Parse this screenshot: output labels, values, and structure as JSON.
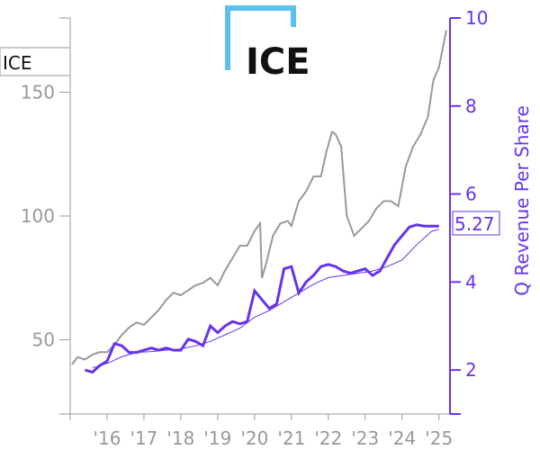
{
  "chart_data": {
    "type": "line",
    "ticker": "ICE",
    "logo_text": "ICE",
    "ylabel_right": "Q Revenue Per Share",
    "last_value_label": "5.27",
    "left_axis": {
      "range": [
        20,
        180
      ],
      "ticks": [
        50,
        100,
        150
      ]
    },
    "right_axis": {
      "range": [
        1,
        10
      ],
      "ticks": [
        2,
        4,
        6,
        8,
        10
      ]
    },
    "x_axis": {
      "range": [
        2015.0,
        2025.3
      ],
      "tick_labels": [
        "'16",
        "'17",
        "'18",
        "'19",
        "'20",
        "'21",
        "'22",
        "'23",
        "'24",
        "'25"
      ]
    },
    "grid": false,
    "colors": {
      "price": "#999999",
      "revenue": "#6633ee",
      "logo_accent": "#5bc0eb"
    },
    "series": [
      {
        "type": "price",
        "axis": "left",
        "x": [
          2015.05,
          2015.2,
          2015.4,
          2015.6,
          2015.8,
          2016.0,
          2016.2,
          2016.4,
          2016.6,
          2016.8,
          2017.0,
          2017.2,
          2017.4,
          2017.6,
          2017.8,
          2018.0,
          2018.2,
          2018.4,
          2018.6,
          2018.8,
          2019.0,
          2019.2,
          2019.4,
          2019.6,
          2019.8,
          2020.0,
          2020.15,
          2020.2,
          2020.3,
          2020.5,
          2020.7,
          2020.9,
          2021.0,
          2021.2,
          2021.4,
          2021.6,
          2021.8,
          2021.95,
          2022.1,
          2022.2,
          2022.35,
          2022.5,
          2022.7,
          2022.9,
          2023.1,
          2023.3,
          2023.5,
          2023.7,
          2023.9,
          2024.1,
          2024.3,
          2024.5,
          2024.7,
          2024.85,
          2025.0,
          2025.2
        ],
        "values": [
          40,
          43,
          42,
          44,
          45,
          45,
          48,
          52,
          55,
          57,
          56,
          59,
          62,
          66,
          69,
          68,
          70,
          72,
          73,
          75,
          72,
          78,
          83,
          88,
          88,
          94,
          97,
          75,
          80,
          92,
          97,
          98,
          96,
          106,
          110,
          116,
          116,
          126,
          134,
          133,
          128,
          100,
          92,
          95,
          98,
          103,
          106,
          106,
          104,
          120,
          128,
          133,
          140,
          155,
          160,
          175
        ]
      },
      {
        "type": "revenue",
        "axis": "right",
        "x": [
          2015.4,
          2015.6,
          2015.8,
          2016.0,
          2016.2,
          2016.4,
          2016.6,
          2016.8,
          2017.0,
          2017.2,
          2017.4,
          2017.6,
          2017.8,
          2018.0,
          2018.2,
          2018.4,
          2018.6,
          2018.8,
          2019.0,
          2019.2,
          2019.4,
          2019.6,
          2019.8,
          2020.0,
          2020.2,
          2020.4,
          2020.6,
          2020.8,
          2021.0,
          2021.2,
          2021.4,
          2021.6,
          2021.8,
          2022.0,
          2022.2,
          2022.4,
          2022.6,
          2022.8,
          2023.0,
          2023.2,
          2023.4,
          2023.6,
          2023.8,
          2024.0,
          2024.2,
          2024.4,
          2024.6,
          2024.8,
          2025.0
        ],
        "values": [
          2.0,
          1.95,
          2.1,
          2.2,
          2.6,
          2.55,
          2.4,
          2.4,
          2.45,
          2.5,
          2.45,
          2.5,
          2.45,
          2.45,
          2.7,
          2.65,
          2.55,
          3.0,
          2.85,
          3.0,
          3.1,
          3.05,
          3.1,
          3.8,
          3.6,
          3.4,
          3.5,
          4.3,
          4.35,
          3.75,
          4.0,
          4.15,
          4.35,
          4.4,
          4.35,
          4.25,
          4.2,
          4.25,
          4.3,
          4.15,
          4.25,
          4.55,
          4.85,
          5.05,
          5.25,
          5.3,
          5.27,
          5.27,
          5.27
        ]
      },
      {
        "type": "revenue_trend",
        "axis": "right",
        "x": [
          2015.6,
          2016.0,
          2016.4,
          2016.8,
          2017.2,
          2017.6,
          2018.0,
          2018.4,
          2018.8,
          2019.2,
          2019.6,
          2020.0,
          2020.4,
          2020.8,
          2021.2,
          2021.6,
          2022.0,
          2022.4,
          2022.8,
          2023.2,
          2023.6,
          2024.0,
          2024.4,
          2024.8,
          2025.0
        ],
        "values": [
          2.05,
          2.15,
          2.3,
          2.4,
          2.42,
          2.45,
          2.48,
          2.55,
          2.65,
          2.8,
          2.95,
          3.2,
          3.35,
          3.55,
          3.75,
          3.95,
          4.1,
          4.15,
          4.2,
          4.25,
          4.35,
          4.5,
          4.85,
          5.15,
          5.2
        ]
      }
    ]
  }
}
